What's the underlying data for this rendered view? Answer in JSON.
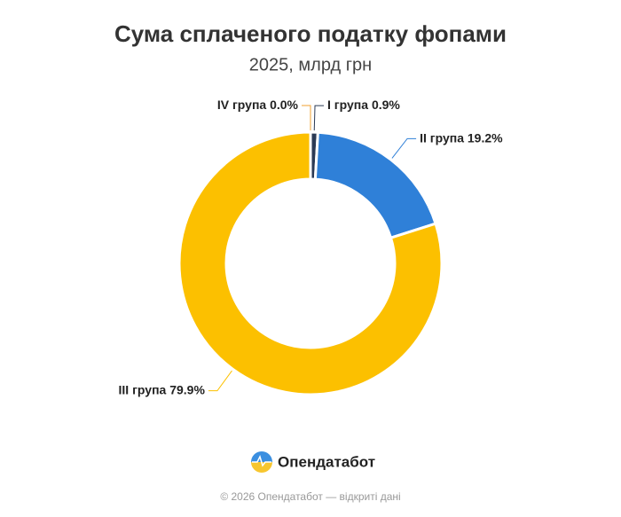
{
  "chart_data": {
    "type": "donut",
    "title": "Сума сплаченого податку фопами",
    "subtitle": "2025, млрд грн",
    "categories": [
      "I група",
      "II група",
      "III група",
      "IV група"
    ],
    "values": [
      0.9,
      19.2,
      79.9,
      0.0
    ],
    "value_labels": [
      "0.9%",
      "19.2%",
      "79.9%",
      "0.0%"
    ],
    "colors": [
      "#2b3a55",
      "#2f80d8",
      "#fcc000",
      "#f0a030"
    ]
  },
  "brand": "Опендатабот",
  "footer": "© 2026 Опендатабот — відкриті дані"
}
